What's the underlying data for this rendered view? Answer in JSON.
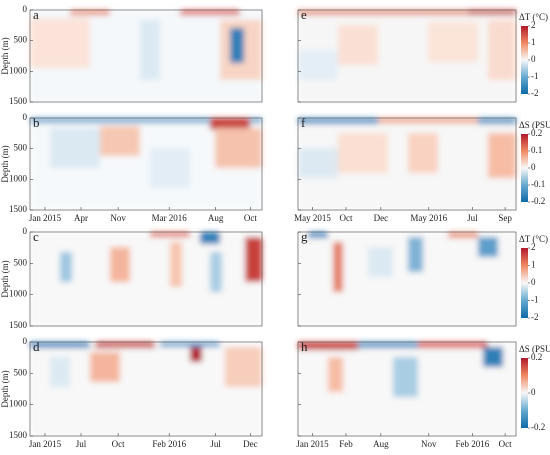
{
  "depth_axis": {
    "label": "Depth (m)",
    "lim": [
      0,
      1500
    ],
    "ticks": [
      0,
      500,
      1000,
      1500
    ]
  },
  "panels": [
    {
      "letter": "a"
    },
    {
      "letter": "e"
    },
    {
      "letter": "b",
      "xticks": [
        "Jan 2015",
        "Apr",
        "Nov",
        "Mar 2016",
        "Aug",
        "Oct"
      ]
    },
    {
      "letter": "f",
      "xticks": [
        "May 2015",
        "Oct",
        "Dec",
        "May 2016",
        "Jul",
        "Sep"
      ]
    },
    {
      "letter": "c"
    },
    {
      "letter": "g"
    },
    {
      "letter": "d",
      "xticks": [
        "Jan 2015",
        "Jul",
        "Oct",
        "Feb 2016",
        "Jul",
        "Dec"
      ]
    },
    {
      "letter": "h",
      "xticks": [
        "Jan 2015",
        "Feb",
        "Aug",
        "Nov",
        "Feb 2016",
        "Oct"
      ]
    }
  ],
  "colorbars": [
    {
      "label": "ΔT (°C)",
      "lim": [
        -2,
        2
      ],
      "ticks": [
        2,
        1,
        0,
        -1,
        -2
      ]
    },
    {
      "label": "ΔS (PSU)",
      "lim": [
        -0.2,
        0.2
      ],
      "ticks": [
        0.2,
        0.1,
        0,
        -0.1,
        -0.2
      ]
    },
    {
      "label": "ΔT (°C)",
      "lim": [
        -2,
        2
      ],
      "ticks": [
        2,
        1,
        0,
        -1,
        -2
      ]
    },
    {
      "label": "ΔS (PSU)",
      "lim": [
        -0.2,
        0.2
      ],
      "ticks": [
        0.2,
        0,
        -0.2
      ]
    }
  ]
}
